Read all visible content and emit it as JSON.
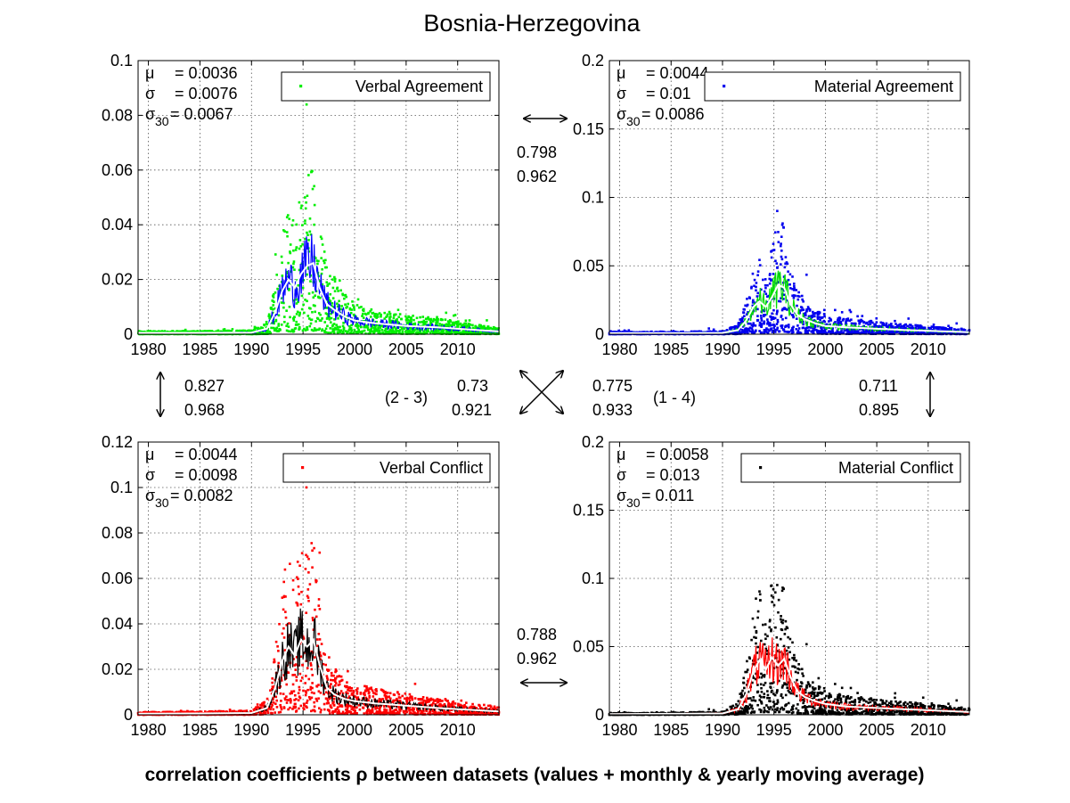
{
  "figure": {
    "title": "Bosnia-Herzegovina",
    "footer": "correlation coefficients ρ between datasets (values + monthly & yearly moving average)"
  },
  "chart_data": [
    {
      "type": "scatter",
      "legend": "Verbal Agreement",
      "legend_position": "top-right",
      "grid": true,
      "marker_color": "#00ee00",
      "monthly_line_color": "#0000ff",
      "yearly_line_color": "#ffffff",
      "xlim": [
        1979,
        2014
      ],
      "ylim": [
        0,
        0.1
      ],
      "xticks": [
        "1980",
        "1985",
        "1990",
        "1995",
        "2000",
        "2005",
        "2010"
      ],
      "yticks": [
        "0",
        "0.02",
        "0.04",
        "0.06",
        "0.08",
        "0.1"
      ],
      "stats": [
        {
          "sym": "μ",
          "sub": "",
          "value": "= 0.0036"
        },
        {
          "sym": "σ",
          "sub": "",
          "value": "= 0.0076"
        },
        {
          "sym": "σ",
          "sub": "30",
          "value": "= 0.0067"
        }
      ],
      "yearly_avg": {
        "x": [
          1979,
          1985,
          1990,
          1991.5,
          1992.3,
          1993,
          1993.6,
          1994.2,
          1994.8,
          1995.4,
          1996,
          1996.6,
          1997.3,
          1998,
          1999,
          2000,
          2002,
          2005,
          2008,
          2014
        ],
        "y": [
          0.0005,
          0.0005,
          0.0006,
          0.002,
          0.008,
          0.016,
          0.02,
          0.017,
          0.022,
          0.025,
          0.026,
          0.017,
          0.011,
          0.009,
          0.0065,
          0.005,
          0.004,
          0.003,
          0.0025,
          0.001
        ]
      }
    },
    {
      "type": "scatter",
      "legend": "Material Agreement",
      "legend_position": "top-right",
      "grid": true,
      "marker_color": "#0000ee",
      "monthly_line_color": "#00dd00",
      "yearly_line_color": "#ffffff",
      "xlim": [
        1979,
        2014
      ],
      "ylim": [
        0,
        0.2
      ],
      "xticks": [
        "1980",
        "1985",
        "1990",
        "1995",
        "2000",
        "2005",
        "2010"
      ],
      "yticks": [
        "0",
        "0.05",
        "0.1",
        "0.15",
        "0.2"
      ],
      "stats": [
        {
          "sym": "μ",
          "sub": "",
          "value": "= 0.0044"
        },
        {
          "sym": "σ",
          "sub": "",
          "value": "= 0.01"
        },
        {
          "sym": "σ",
          "sub": "30",
          "value": "= 0.0086"
        }
      ],
      "yearly_avg": {
        "x": [
          1979,
          1985,
          1990,
          1991.5,
          1992.3,
          1993,
          1993.6,
          1994.2,
          1994.8,
          1995.4,
          1996,
          1996.6,
          1997.3,
          1998,
          1999,
          2000,
          2002,
          2005,
          2008,
          2014
        ],
        "y": [
          0.0008,
          0.0008,
          0.001,
          0.003,
          0.01,
          0.02,
          0.024,
          0.02,
          0.027,
          0.036,
          0.034,
          0.022,
          0.014,
          0.011,
          0.008,
          0.006,
          0.005,
          0.004,
          0.003,
          0.0015
        ]
      }
    },
    {
      "type": "scatter",
      "legend": "Verbal Conflict",
      "legend_position": "top-right",
      "grid": true,
      "marker_color": "#ff0000",
      "monthly_line_color": "#000000",
      "yearly_line_color": "#ffffff",
      "xlim": [
        1979,
        2014
      ],
      "ylim": [
        0,
        0.12
      ],
      "xticks": [
        "1980",
        "1985",
        "1990",
        "1995",
        "2000",
        "2005",
        "2010"
      ],
      "yticks": [
        "0",
        "0.02",
        "0.04",
        "0.06",
        "0.08",
        "0.1",
        "0.12"
      ],
      "stats": [
        {
          "sym": "μ",
          "sub": "",
          "value": "= 0.0044"
        },
        {
          "sym": "σ",
          "sub": "",
          "value": "= 0.0098"
        },
        {
          "sym": "σ",
          "sub": "30",
          "value": "= 0.0082"
        }
      ],
      "yearly_avg": {
        "x": [
          1979,
          1985,
          1990,
          1991.5,
          1992.3,
          1993,
          1993.6,
          1994.2,
          1994.8,
          1995.4,
          1996,
          1996.6,
          1997.3,
          1998,
          1999,
          2000,
          2002,
          2005,
          2008,
          2014
        ],
        "y": [
          0.0005,
          0.0006,
          0.0008,
          0.003,
          0.012,
          0.024,
          0.03,
          0.026,
          0.033,
          0.03,
          0.033,
          0.022,
          0.012,
          0.009,
          0.007,
          0.006,
          0.005,
          0.004,
          0.003,
          0.0015
        ]
      }
    },
    {
      "type": "scatter",
      "legend": "Material Conflict",
      "legend_position": "top-right",
      "grid": true,
      "marker_color": "#000000",
      "monthly_line_color": "#ff0000",
      "yearly_line_color": "#ffffff",
      "xlim": [
        1979,
        2014
      ],
      "ylim": [
        0,
        0.2
      ],
      "xticks": [
        "1980",
        "1985",
        "1990",
        "1995",
        "2000",
        "2005",
        "2010"
      ],
      "yticks": [
        "0",
        "0.05",
        "0.1",
        "0.15",
        "0.2"
      ],
      "stats": [
        {
          "sym": "μ",
          "sub": "",
          "value": "= 0.0058"
        },
        {
          "sym": "σ",
          "sub": "",
          "value": "= 0.013"
        },
        {
          "sym": "σ",
          "sub": "30",
          "value": "= 0.011"
        }
      ],
      "yearly_avg": {
        "x": [
          1979,
          1985,
          1990,
          1991.5,
          1992.3,
          1993,
          1993.6,
          1994.2,
          1994.8,
          1995.4,
          1996,
          1996.6,
          1997.3,
          1998,
          1999,
          2000,
          2002,
          2005,
          2008,
          2014
        ],
        "y": [
          0.0005,
          0.0007,
          0.001,
          0.004,
          0.015,
          0.032,
          0.04,
          0.033,
          0.042,
          0.036,
          0.041,
          0.028,
          0.017,
          0.013,
          0.01,
          0.008,
          0.006,
          0.005,
          0.004,
          0.002
        ]
      }
    }
  ],
  "correlations": {
    "top": [
      "0.798",
      "0.962"
    ],
    "bottom": [
      "0.788",
      "0.962"
    ],
    "left": [
      "0.827",
      "0.968"
    ],
    "right": [
      "0.711",
      "0.895"
    ],
    "diag_left": [
      "0.73",
      "0.921"
    ],
    "diag_right": [
      "0.775",
      "0.933"
    ],
    "diag_left_label": "(2 - 3)",
    "diag_right_label": "(1 - 4)"
  }
}
